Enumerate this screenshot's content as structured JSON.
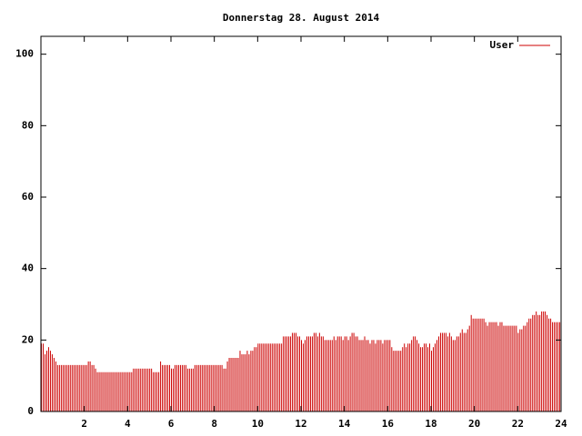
{
  "chart_data": {
    "type": "impulse",
    "title": "Donnerstag 28. August 2014",
    "series": [
      {
        "name": "User",
        "color": "#cc0000",
        "values": [
          19,
          19,
          16,
          17,
          18,
          17,
          16,
          15,
          14,
          13,
          13,
          13,
          13,
          13,
          13,
          13,
          13,
          13,
          13,
          13,
          13,
          13,
          13,
          13,
          13,
          13,
          14,
          14,
          13,
          13,
          12,
          11,
          11,
          11,
          11,
          11,
          11,
          11,
          11,
          11,
          11,
          11,
          11,
          11,
          11,
          11,
          11,
          11,
          11,
          11,
          11,
          12,
          12,
          12,
          12,
          12,
          12,
          12,
          12,
          12,
          12,
          12,
          11,
          11,
          11,
          11,
          14,
          13,
          13,
          13,
          13,
          13,
          12,
          12,
          13,
          13,
          13,
          13,
          13,
          13,
          13,
          12,
          12,
          12,
          12,
          13,
          13,
          13,
          13,
          13,
          13,
          13,
          13,
          13,
          13,
          13,
          13,
          13,
          13,
          13,
          13,
          12,
          12,
          14,
          15,
          15,
          15,
          15,
          15,
          15,
          17,
          16,
          16,
          16,
          17,
          16,
          17,
          17,
          18,
          18,
          19,
          19,
          19,
          19,
          19,
          19,
          19,
          19,
          19,
          19,
          19,
          19,
          19,
          19,
          21,
          21,
          21,
          21,
          21,
          22,
          22,
          22,
          21,
          21,
          20,
          19,
          20,
          21,
          21,
          21,
          21,
          22,
          22,
          21,
          22,
          21,
          21,
          20,
          20,
          20,
          20,
          20,
          21,
          20,
          21,
          21,
          21,
          20,
          21,
          21,
          20,
          21,
          22,
          22,
          21,
          21,
          20,
          20,
          20,
          21,
          20,
          20,
          19,
          20,
          20,
          19,
          20,
          20,
          20,
          19,
          20,
          20,
          20,
          20,
          18,
          17,
          17,
          17,
          17,
          17,
          18,
          19,
          18,
          19,
          19,
          20,
          21,
          21,
          20,
          19,
          18,
          18,
          19,
          19,
          18,
          19,
          17,
          18,
          19,
          20,
          21,
          22,
          22,
          22,
          22,
          21,
          22,
          21,
          20,
          20,
          21,
          21,
          22,
          23,
          22,
          22,
          23,
          24,
          27,
          26,
          26,
          26,
          26,
          26,
          26,
          26,
          25,
          24,
          25,
          25,
          25,
          25,
          25,
          24,
          25,
          25,
          24,
          24,
          24,
          24,
          24,
          24,
          24,
          24,
          22,
          23,
          23,
          24,
          24,
          25,
          26,
          26,
          27,
          27,
          28,
          27,
          27,
          28,
          28,
          28,
          27,
          26,
          26,
          25,
          25,
          25,
          25,
          25
        ]
      }
    ],
    "x": [
      0,
      0.083,
      0.167,
      0.25,
      0.333,
      0.417,
      0.5,
      0.583,
      0.667,
      0.75,
      0.833,
      0.917,
      1,
      1.083,
      1.167,
      1.25,
      1.333,
      1.417,
      1.5,
      1.583,
      1.667,
      1.75,
      1.833,
      1.917,
      2,
      2.083,
      2.167,
      2.25,
      2.333,
      2.417,
      2.5,
      2.583,
      2.667,
      2.75,
      2.833,
      2.917,
      3,
      3.083,
      3.167,
      3.25,
      3.333,
      3.417,
      3.5,
      3.583,
      3.667,
      3.75,
      3.833,
      3.917,
      4,
      4.083,
      4.167,
      4.25,
      4.333,
      4.417,
      4.5,
      4.583,
      4.667,
      4.75,
      4.833,
      4.917,
      5,
      5.083,
      5.167,
      5.25,
      5.333,
      5.417,
      5.5,
      5.583,
      5.667,
      5.75,
      5.833,
      5.917,
      6,
      6.083,
      6.167,
      6.25,
      6.333,
      6.417,
      6.5,
      6.583,
      6.667,
      6.75,
      6.833,
      6.917,
      7,
      7.083,
      7.167,
      7.25,
      7.333,
      7.417,
      7.5,
      7.583,
      7.667,
      7.75,
      7.833,
      7.917,
      8,
      8.083,
      8.167,
      8.25,
      8.333,
      8.417,
      8.5,
      8.583,
      8.667,
      8.75,
      8.833,
      8.917,
      9,
      9.083,
      9.167,
      9.25,
      9.333,
      9.417,
      9.5,
      9.583,
      9.667,
      9.75,
      9.833,
      9.917,
      10,
      10.083,
      10.167,
      10.25,
      10.333,
      10.417,
      10.5,
      10.583,
      10.667,
      10.75,
      10.833,
      10.917,
      11,
      11.083,
      11.167,
      11.25,
      11.333,
      11.417,
      11.5,
      11.583,
      11.667,
      11.75,
      11.833,
      11.917,
      12,
      12.083,
      12.167,
      12.25,
      12.333,
      12.417,
      12.5,
      12.583,
      12.667,
      12.75,
      12.833,
      12.917,
      13,
      13.083,
      13.167,
      13.25,
      13.333,
      13.417,
      13.5,
      13.583,
      13.667,
      13.75,
      13.833,
      13.917,
      14,
      14.083,
      14.167,
      14.25,
      14.333,
      14.417,
      14.5,
      14.583,
      14.667,
      14.75,
      14.833,
      14.917,
      15,
      15.083,
      15.167,
      15.25,
      15.333,
      15.417,
      15.5,
      15.583,
      15.667,
      15.75,
      15.833,
      15.917,
      16,
      16.083,
      16.167,
      16.25,
      16.333,
      16.417,
      16.5,
      16.583,
      16.667,
      16.75,
      16.833,
      16.917,
      17,
      17.083,
      17.167,
      17.25,
      17.333,
      17.417,
      17.5,
      17.583,
      17.667,
      17.75,
      17.833,
      17.917,
      18,
      18.083,
      18.167,
      18.25,
      18.333,
      18.417,
      18.5,
      18.583,
      18.667,
      18.75,
      18.833,
      18.917,
      19,
      19.083,
      19.167,
      19.25,
      19.333,
      19.417,
      19.5,
      19.583,
      19.667,
      19.75,
      19.833,
      19.917,
      20,
      20.083,
      20.167,
      20.25,
      20.333,
      20.417,
      20.5,
      20.583,
      20.667,
      20.75,
      20.833,
      20.917,
      21,
      21.083,
      21.167,
      21.25,
      21.333,
      21.417,
      21.5,
      21.583,
      21.667,
      21.75,
      21.833,
      21.917,
      22,
      22.083,
      22.167,
      22.25,
      22.333,
      22.417,
      22.5,
      22.583,
      22.667,
      22.75,
      22.833,
      22.917,
      23,
      23.083,
      23.167,
      23.25,
      23.333,
      23.417,
      23.5,
      23.583,
      23.667,
      23.75,
      23.833,
      23.917
    ],
    "xlim": [
      0,
      24
    ],
    "xticks": [
      2,
      4,
      6,
      8,
      10,
      12,
      14,
      16,
      18,
      20,
      22,
      24
    ],
    "ylim": [
      0,
      105
    ],
    "yticks": [
      0,
      20,
      40,
      60,
      80,
      100
    ],
    "legend": "top-right"
  }
}
